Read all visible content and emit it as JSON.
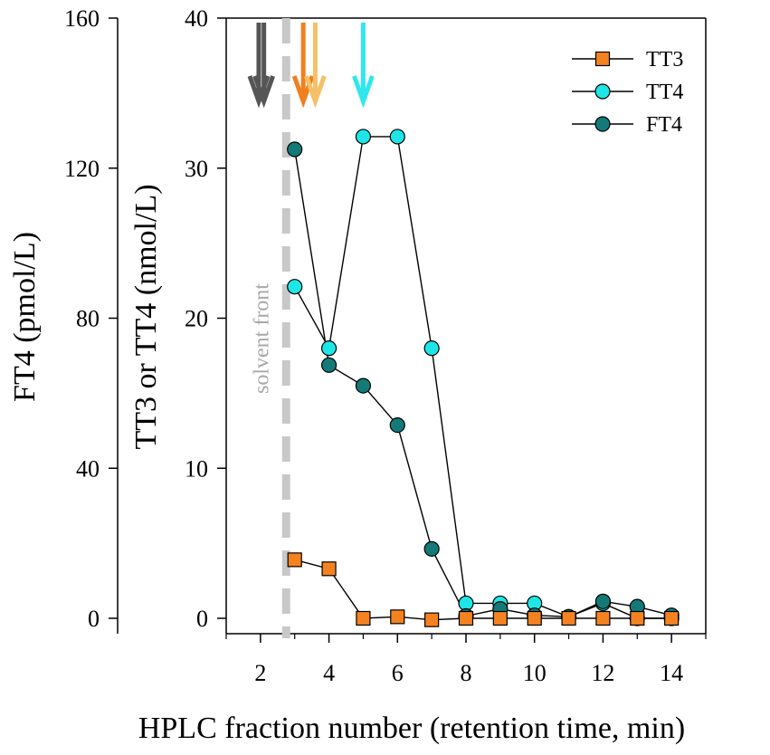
{
  "chart_data": {
    "type": "line",
    "xlabel": "HPLC fraction number (retention time, min)",
    "ylabel_left": "FT4 (pmol/L)",
    "ylabel_right": "TT3 or TT4 (nmol/L)",
    "xlim": [
      1,
      15
    ],
    "ylim_left": [
      0,
      160
    ],
    "ylim_right": [
      0,
      40
    ],
    "x_ticks": [
      2,
      4,
      6,
      8,
      10,
      12,
      14
    ],
    "y_ticks_left": [
      0,
      40,
      80,
      120,
      160
    ],
    "y_ticks_right": [
      0,
      10,
      20,
      30,
      40
    ],
    "legend_position": "top-right",
    "series": [
      {
        "name": "TT3",
        "axis": "right",
        "marker": "square",
        "color": "#f58220",
        "x": [
          3,
          4,
          5,
          6,
          7,
          8,
          9,
          10,
          11,
          12,
          13,
          14
        ],
        "values": [
          3.9,
          3.3,
          0,
          0.1,
          -0.1,
          0,
          0,
          0,
          0,
          0,
          0,
          0
        ]
      },
      {
        "name": "TT4",
        "axis": "right",
        "marker": "circle",
        "color": "#1fe6e6",
        "x": [
          3,
          4,
          5,
          6,
          7,
          8,
          9,
          10,
          11,
          12,
          13,
          14
        ],
        "values": [
          22.1,
          18,
          32.1,
          32.1,
          18,
          1,
          1,
          1,
          0.1,
          1,
          0,
          0
        ]
      },
      {
        "name": "FT4",
        "axis": "left",
        "marker": "circle",
        "color": "#137a78",
        "x": [
          3,
          4,
          5,
          6,
          7,
          8,
          9,
          10,
          11,
          12,
          13,
          14
        ],
        "values": [
          125,
          67.5,
          62,
          51.5,
          18.5,
          0.6,
          2.5,
          0.8,
          0.4,
          4.5,
          3.1,
          0.8
        ]
      }
    ],
    "annotations": [
      {
        "text": "solvent front",
        "x": 2.75,
        "style": "dashed-vertical-line",
        "color": "#c8c8c8"
      }
    ],
    "arrows": [
      {
        "x": 1.95,
        "color": "#555555"
      },
      {
        "x": 2.1,
        "color": "#555555"
      },
      {
        "x": 3.25,
        "color": "#f07f1f"
      },
      {
        "x": 3.6,
        "color": "#f5c068"
      },
      {
        "x": 5.0,
        "color": "#2ee8ee"
      }
    ]
  }
}
